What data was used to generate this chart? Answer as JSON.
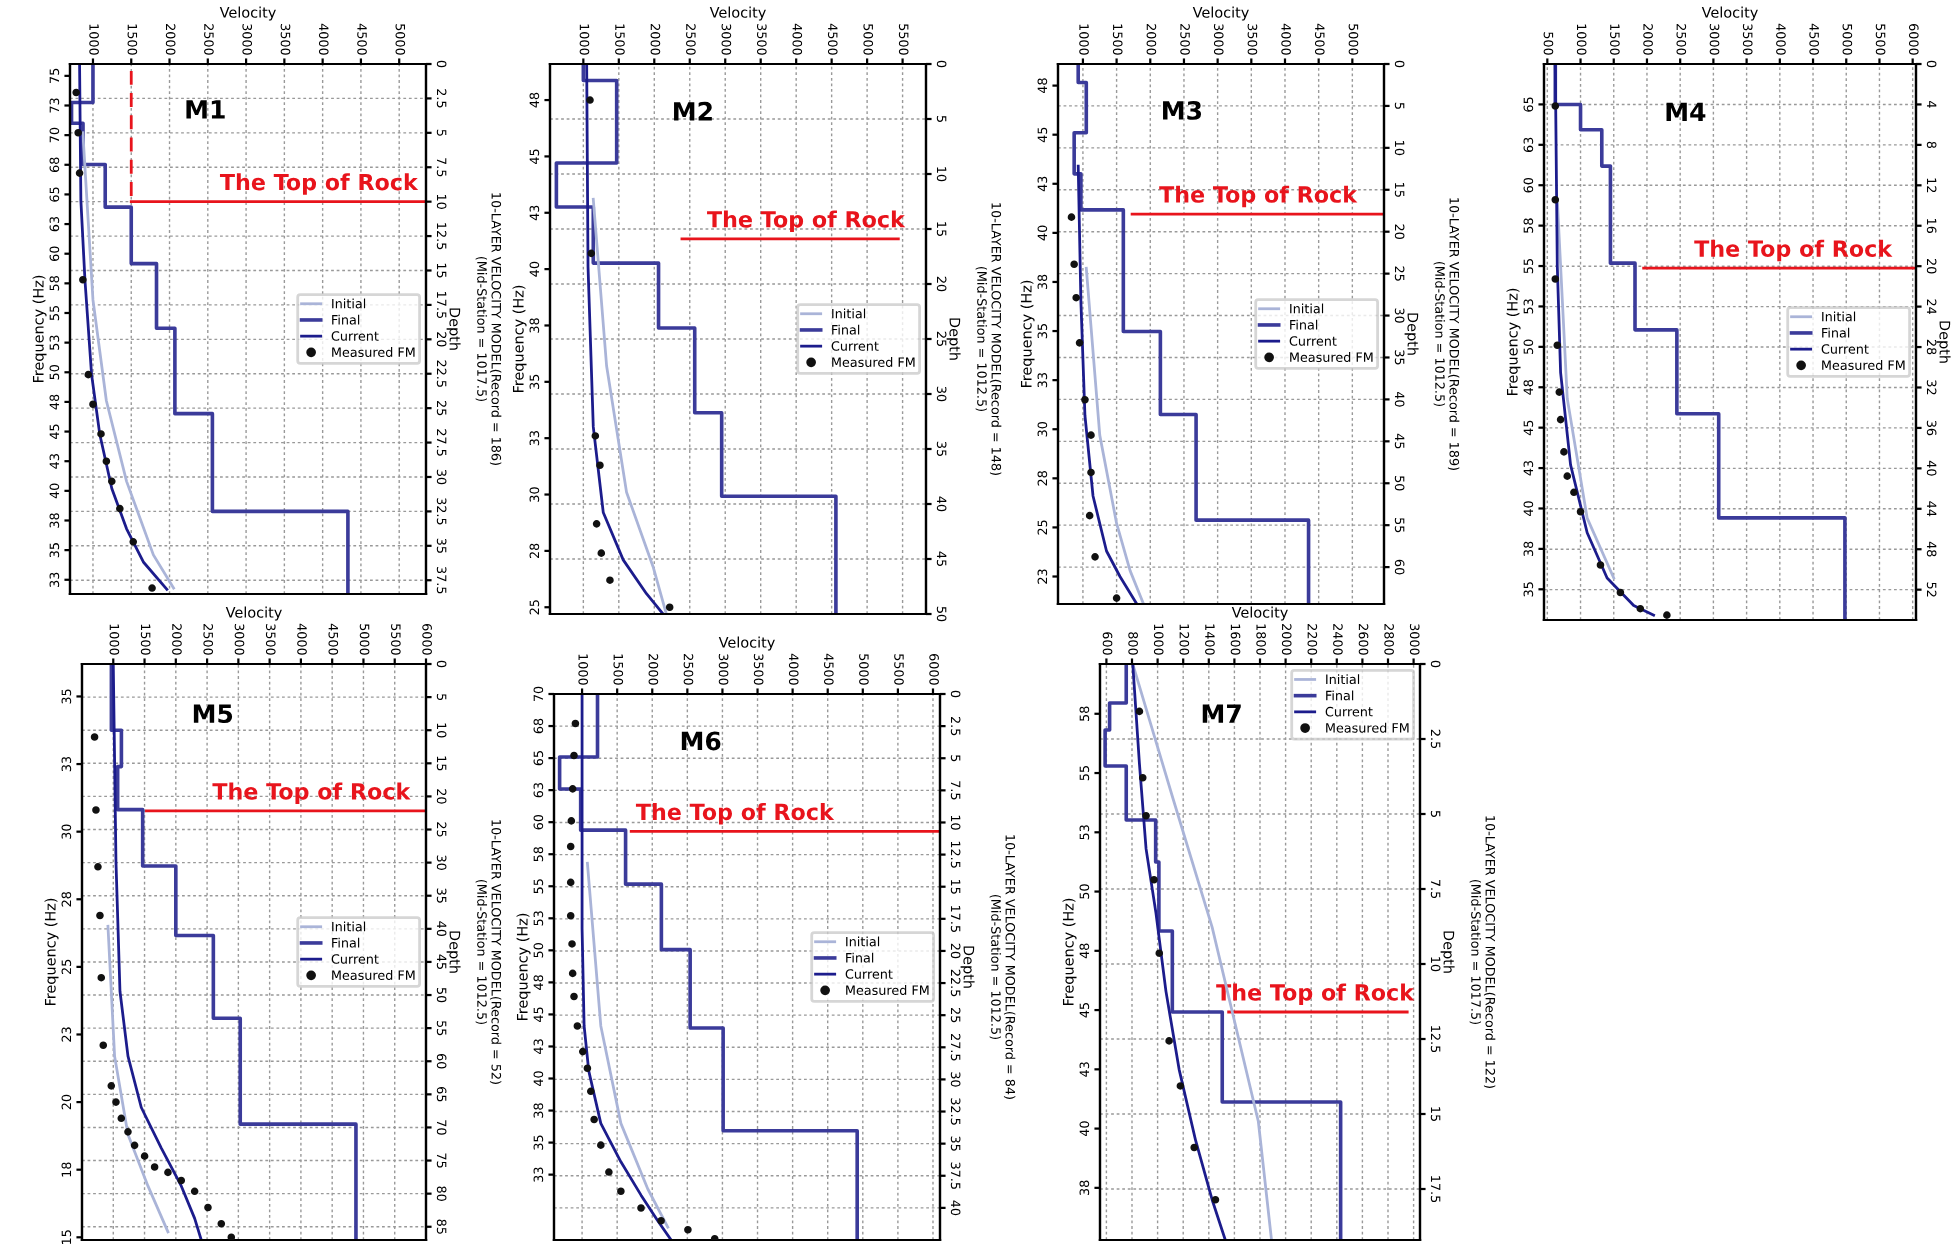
{
  "chart_data": [
    {
      "type": "line",
      "title": "M1",
      "xlabel": "Velocity",
      "ylabel": "Depth",
      "y2label": "Frequency (Hz)",
      "grid": true,
      "legend": "right",
      "xlim": [
        700,
        5350
      ],
      "xticks": [
        1000,
        1500,
        2000,
        2500,
        3000,
        3500,
        4000,
        4500,
        5000
      ],
      "ylim": [
        38.5,
        0
      ],
      "yticks": [
        0,
        2.5,
        5,
        7.5,
        10,
        12.5,
        15,
        17.5,
        20,
        22.5,
        25,
        27.5,
        30,
        32.5,
        35,
        37.5
      ],
      "y2lim": [
        31.3,
        76
      ],
      "y2ticks": [
        75,
        {
          "value": 72.5,
          "label": "73"
        },
        70,
        {
          "value": 67.5,
          "label": "68"
        },
        65,
        {
          "value": 62.5,
          "label": "63"
        },
        60,
        {
          "value": 57.5,
          "label": "58"
        },
        55,
        {
          "value": 52.5,
          "label": "53"
        },
        50,
        {
          "value": 47.5,
          "label": "48"
        },
        45,
        {
          "value": 42.5,
          "label": "43"
        },
        40,
        {
          "value": 37.5,
          "label": "38"
        },
        35,
        {
          "value": 32.5,
          "label": "33"
        }
      ],
      "series": [
        {
          "name": "Initial",
          "type": "line",
          "axis": "y2",
          "color": "#aab4d8",
          "x": [
            868,
            1000,
            1175,
            1439,
            1789,
            2053
          ],
          "values": [
            70.2,
            56.1,
            47.6,
            40.8,
            34.6,
            31.8
          ]
        },
        {
          "name": "Final",
          "color": "#3b3b9a",
          "x": [
            1000,
            1000,
            720,
            720,
            870,
            870,
            1160,
            1160,
            1500,
            1500,
            1830,
            1830,
            2070,
            2070,
            2560,
            2560,
            4330,
            4330
          ],
          "values": [
            0,
            2.8,
            2.8,
            4.3,
            4.3,
            7.3,
            7.3,
            10.4,
            10.4,
            14.5,
            14.5,
            19.2,
            19.2,
            25.4,
            25.4,
            32.5,
            32.5,
            38.5
          ]
        },
        {
          "name": "Current",
          "type": "line",
          "axis": "y2",
          "color": "#1c1c8c",
          "x": [
            825,
            842,
            895,
            982,
            1088,
            1246,
            1439,
            1658,
            1965
          ],
          "values": [
            76,
            64.5,
            57.8,
            49.8,
            44.8,
            40.2,
            36.8,
            34,
            31.7
          ]
        },
        {
          "name": "Measured FM",
          "type": "scatter",
          "axis": "y2",
          "marker": "circle",
          "color": "#111111",
          "x": [
            781,
            807,
            825,
            868,
            939,
            1000,
            1105,
            1175,
            1246,
            1351,
            1526,
            1772
          ],
          "values": [
            73.6,
            70.2,
            66.8,
            57.8,
            49.8,
            47.3,
            44.8,
            42.5,
            40.8,
            38.5,
            35.7,
            31.8
          ]
        },
        {
          "color": "#e8141c",
          "line_style": "dashed",
          "x": [
            1500,
            1500
          ],
          "values": [
            0.5,
            10
          ]
        },
        {
          "color": "#e8141c",
          "x": [
            1500,
            5350
          ],
          "values": [
            10,
            10
          ]
        }
      ],
      "annotations": [
        {
          "text": "The Top of Rock",
          "x": 3950,
          "y": 10
        },
        "10-LAYER VELOCITY MODEL(Record = 186)\n(Mid-Station = 1017.5)"
      ]
    },
    {
      "type": "line",
      "title": "M2",
      "xlabel": "Velocity",
      "ylabel": "Depth",
      "y2label": "Frequency (Hz)",
      "grid": true,
      "legend": "right",
      "xlim": [
        530,
        5830
      ],
      "xticks": [
        1000,
        1500,
        2000,
        2500,
        3000,
        3500,
        4000,
        4500,
        5000,
        5500
      ],
      "ylim": [
        50,
        0
      ],
      "yticks": [
        0,
        5,
        10,
        15,
        20,
        25,
        30,
        35,
        40,
        45,
        50
      ],
      "y2lim": [
        24.7,
        49.1
      ],
      "y2ticks": [
        {
          "value": 47.5,
          "label": "48"
        },
        45,
        {
          "value": 42.5,
          "label": "43"
        },
        40,
        {
          "value": 37.5,
          "label": "38"
        },
        35,
        {
          "value": 32.5,
          "label": "33"
        },
        30,
        {
          "value": 27.5,
          "label": "28"
        },
        25
      ],
      "series": [
        {
          "name": "Initial",
          "type": "line",
          "axis": "y2",
          "color": "#aab4d8",
          "x": [
            1140,
            1328,
            1609,
            1983,
            2170
          ],
          "values": [
            43.1,
            35.7,
            30.1,
            26.8,
            24.7
          ]
        },
        {
          "name": "Final",
          "color": "#3b3b9a",
          "x": [
            1000,
            1000,
            1470,
            1470,
            620,
            620,
            1140,
            1140,
            2060,
            2060,
            2570,
            2570,
            2950,
            2950,
            4560,
            4560
          ],
          "values": [
            0,
            1.5,
            1.5,
            9,
            9,
            13,
            13,
            18.1,
            18.1,
            24,
            24,
            31.7,
            31.7,
            39.3,
            39.3,
            50
          ]
        },
        {
          "name": "Current",
          "type": "line",
          "axis": "y2",
          "color": "#1c1c8c",
          "x": [
            1047,
            1066,
            1140,
            1281,
            1562,
            1890,
            2124
          ],
          "values": [
            49.1,
            40.1,
            33,
            29.2,
            27.1,
            25.6,
            24.7
          ]
        },
        {
          "name": "Measured FM",
          "type": "scatter",
          "axis": "y2",
          "marker": "circle",
          "color": "#111111",
          "x": [
            1094,
            1112,
            1169,
            1234,
            1187,
            1253,
            1375,
            2217
          ],
          "values": [
            47.5,
            40.7,
            32.6,
            31.3,
            28.7,
            27.4,
            26.2,
            25
          ]
        },
        {
          "color": "#e8141c",
          "x": [
            2390,
            5440
          ],
          "values": [
            15.9,
            15.9
          ]
        }
      ],
      "annotations": [
        {
          "text": "The Top of Rock",
          "x": 4137,
          "y": 15.9
        },
        "10-LAYER VELOCITY MODEL(Record = 148)\n(Mid-Station = 1012.5)"
      ]
    },
    {
      "type": "line",
      "title": "M3",
      "xlabel": "Velocity",
      "ylabel": "Depth",
      "y2label": "Frequency (Hz)",
      "grid": true,
      "legend": "right",
      "xlim": [
        630,
        5470
      ],
      "xticks": [
        1000,
        1500,
        2000,
        2500,
        3000,
        3500,
        4000,
        4500,
        5000
      ],
      "ylim": [
        64.4,
        0
      ],
      "yticks": [
        0,
        5,
        10,
        15,
        20,
        25,
        30,
        35,
        40,
        45,
        50,
        55,
        60
      ],
      "y2lim": [
        21.1,
        48.6
      ],
      "y2ticks": [
        {
          "value": 47.5,
          "label": "48"
        },
        45,
        {
          "value": 42.5,
          "label": "43"
        },
        40,
        {
          "value": 37.5,
          "label": "38"
        },
        35,
        {
          "value": 32.5,
          "label": "33"
        },
        30,
        {
          "value": 27.5,
          "label": "28"
        },
        25,
        {
          "value": 22.5,
          "label": "23"
        }
      ],
      "series": [
        {
          "name": "Initial",
          "type": "line",
          "axis": "y2",
          "color": "#aab4d8",
          "x": [
            1050,
            1250,
            1500,
            1700,
            1900
          ],
          "values": [
            38.2,
            29.7,
            25.2,
            22.8,
            21.1
          ]
        },
        {
          "name": "Final",
          "color": "#3b3b9a",
          "x": [
            930,
            930,
            1050,
            1050,
            870,
            870,
            970,
            970,
            1600,
            1600,
            2150,
            2150,
            2680,
            2680,
            4350,
            4350
          ],
          "values": [
            0,
            2.2,
            2.2,
            8.2,
            8.2,
            13.1,
            13.1,
            17.4,
            17.4,
            31.9,
            31.9,
            41.8,
            41.8,
            54.4,
            54.4,
            64.4
          ]
        },
        {
          "name": "Current",
          "type": "line",
          "axis": "y2",
          "color": "#1c1c8c",
          "x": [
            930,
            970,
            1030,
            1150,
            1350,
            1550,
            1800
          ],
          "values": [
            43.4,
            36.5,
            30.7,
            26.6,
            23.8,
            22.5,
            21.1
          ]
        },
        {
          "name": "Measured FM",
          "type": "scatter",
          "axis": "y2",
          "marker": "circle",
          "color": "#111111",
          "x": [
            830,
            870,
            900,
            950,
            1030,
            1120,
            1120,
            1100,
            1180,
            1500
          ],
          "values": [
            40.8,
            38.4,
            36.7,
            34.4,
            31.5,
            29.7,
            27.8,
            25.6,
            23.5,
            21.4
          ]
        },
        {
          "color": "#e8141c",
          "x": [
            1730,
            5470
          ],
          "values": [
            17.9,
            17.9
          ]
        }
      ],
      "annotations": [
        {
          "text": "The Top of Rock",
          "x": 3600,
          "y": 17.9
        },
        "10-LAYER VELOCITY MODEL(Record = 189)\n(Mid-Station = 1012.5)"
      ]
    },
    {
      "type": "line",
      "title": "M4",
      "xlabel": "Velocity",
      "ylabel": "Depth",
      "y2label": "Frequency (Hz)",
      "grid": true,
      "legend": "right",
      "xlim": [
        450,
        6050
      ],
      "xticks": [
        500,
        1000,
        1500,
        2000,
        2500,
        3000,
        3500,
        4000,
        4500,
        5000,
        5500,
        6000
      ],
      "ylim": [
        55,
        0
      ],
      "yticks": [
        0,
        4,
        8,
        12,
        16,
        20,
        24,
        28,
        32,
        36,
        40,
        44,
        48,
        52
      ],
      "y2lim": [
        33.1,
        67.5
      ],
      "y2ticks": [
        65,
        {
          "value": 62.5,
          "label": "63"
        },
        60,
        {
          "value": 57.5,
          "label": "58"
        },
        55,
        {
          "value": 52.5,
          "label": "53"
        },
        50,
        {
          "value": 47.5,
          "label": "48"
        },
        45,
        {
          "value": 42.5,
          "label": "43"
        },
        40,
        {
          "value": 37.5,
          "label": "38"
        },
        35
      ],
      "series": [
        {
          "name": "Initial",
          "type": "line",
          "axis": "y2",
          "color": "#aab4d8",
          "x": [
            650,
            800,
            1100,
            1500
          ],
          "values": [
            59.1,
            46.8,
            39.4,
            35.7
          ]
        },
        {
          "name": "Final",
          "color": "#3b3b9a",
          "x": [
            620,
            620,
            1000,
            1000,
            1320,
            1320,
            1450,
            1450,
            1820,
            1820,
            2450,
            2450,
            3080,
            3080,
            4980,
            4980
          ],
          "values": [
            0,
            4,
            4,
            6.5,
            6.5,
            10.1,
            10.1,
            19.7,
            19.7,
            26.3,
            26.3,
            34.6,
            34.6,
            44.9,
            44.9,
            55
          ]
        },
        {
          "name": "Current",
          "type": "line",
          "axis": "y2",
          "color": "#1c1c8c",
          "x": [
            620,
            650,
            700,
            850,
            1100,
            1400,
            1800,
            2100
          ],
          "values": [
            67.4,
            55,
            48.4,
            42.7,
            38.5,
            35.7,
            34,
            33.4
          ]
        },
        {
          "name": "Measured FM",
          "type": "scatter",
          "axis": "y2",
          "marker": "circle",
          "color": "#111111",
          "x": [
            620,
            620,
            620,
            650,
            680,
            700,
            750,
            800,
            900,
            1000,
            1300,
            1600,
            1900,
            2300
          ],
          "values": [
            64.9,
            59.1,
            54.2,
            50.1,
            47.2,
            45.5,
            43.5,
            42,
            41,
            39.8,
            36.5,
            34.8,
            33.8,
            33.4
          ]
        },
        {
          "color": "#e8141c",
          "x": [
            1950,
            6020
          ],
          "values": [
            20.2,
            20.2
          ]
        }
      ],
      "annotations": [
        {
          "text": "The Top of Rock",
          "x": 4200,
          "y": 20.2
        }
      ]
    },
    {
      "type": "line",
      "title": "M5",
      "xlabel": "Velocity",
      "ylabel": "Depth",
      "y2label": "Frequency (Hz)",
      "grid": true,
      "legend": "right",
      "xlim": [
        500,
        6000
      ],
      "xticks": [
        1000,
        1500,
        2000,
        2500,
        3000,
        3500,
        4000,
        4500,
        5000,
        5500,
        6000
      ],
      "ylim": [
        87,
        0
      ],
      "yticks": [
        0,
        5,
        10,
        15,
        20,
        25,
        30,
        35,
        40,
        45,
        50,
        55,
        60,
        65,
        70,
        75,
        80,
        85
      ],
      "y2lim": [
        14.9,
        36.2
      ],
      "y2ticks": [
        35,
        {
          "value": 32.5,
          "label": "33"
        },
        30,
        {
          "value": 27.5,
          "label": "28"
        },
        25,
        {
          "value": 22.5,
          "label": "23"
        },
        20,
        {
          "value": 17.5,
          "label": "18"
        },
        15
      ],
      "series": [
        {
          "name": "Initial",
          "type": "line",
          "axis": "y2",
          "color": "#aab4d8",
          "x": [
            915,
            1021,
            1235,
            1554,
            1874
          ],
          "values": [
            26.5,
            21.7,
            18.8,
            16.9,
            15.2
          ]
        },
        {
          "name": "Final",
          "color": "#3b3b9a",
          "x": [
            970,
            970,
            1130,
            1130,
            1070,
            1070,
            1470,
            1470,
            2000,
            2000,
            2600,
            2600,
            3030,
            3030,
            4880,
            4880
          ],
          "values": [
            0,
            10,
            10,
            15.5,
            15.5,
            22,
            22,
            30.5,
            30.5,
            41,
            41,
            53.5,
            53.5,
            69.5,
            69.5,
            87
          ]
        },
        {
          "name": "Current",
          "type": "line",
          "axis": "y2",
          "color": "#1c1c8c",
          "x": [
            1000,
            1043,
            1107,
            1235,
            1448,
            1768,
            2087,
            2301,
            2407
          ],
          "values": [
            36.2,
            28.9,
            24.1,
            21.7,
            19.8,
            18.3,
            16.9,
            15.7,
            14.9
          ]
        },
        {
          "name": "Measured FM",
          "type": "scatter",
          "axis": "y2",
          "marker": "circle",
          "color": "#111111",
          "x": [
            701,
            723,
            755,
            787,
            808,
            840,
            968,
            1043,
            1128,
            1235,
            1341,
            1501,
            1661,
            1874,
            2087,
            2301,
            2514,
            2727,
            2887
          ],
          "values": [
            33.5,
            30.8,
            28.7,
            26.9,
            24.6,
            22.1,
            20.6,
            20,
            19.4,
            18.9,
            18.4,
            18,
            17.6,
            17.4,
            17.1,
            16.7,
            16.1,
            15.5,
            15
          ]
        },
        {
          "color": "#e8141c",
          "x": [
            1530,
            6000
          ],
          "values": [
            22.2,
            22.2
          ]
        }
      ],
      "annotations": [
        {
          "text": "The Top of Rock",
          "x": 4166,
          "y": 22.2
        },
        "10-LAYER VELOCITY MODEL(Record = 52)\n(Mid-Station = 1012.5)"
      ]
    },
    {
      "type": "line",
      "title": "M6",
      "xlabel": "Velocity",
      "ylabel": "Depth",
      "y2label": "Frequency (Hz)",
      "grid": true,
      "legend": "right",
      "xlim": [
        600,
        6100
      ],
      "xticks": [
        1000,
        1500,
        2000,
        2500,
        3000,
        3500,
        4000,
        4500,
        5000,
        5500,
        6000
      ],
      "ylim": [
        42.5,
        0
      ],
      "yticks": [
        0,
        2.5,
        5,
        7.5,
        10,
        12.5,
        15,
        17.5,
        20,
        22.5,
        25,
        27.5,
        30,
        32.5,
        35,
        37.5,
        40
      ],
      "y2lim": [
        27.4,
        70
      ],
      "y2ticks": [
        70,
        {
          "value": 67.5,
          "label": "68"
        },
        65,
        {
          "value": 62.5,
          "label": "63"
        },
        60,
        {
          "value": 57.5,
          "label": "58"
        },
        55,
        {
          "value": 52.5,
          "label": "53"
        },
        50,
        {
          "value": 47.5,
          "label": "48"
        },
        45,
        {
          "value": 42.5,
          "label": "43"
        },
        40,
        {
          "value": 37.5,
          "label": "38"
        },
        35,
        {
          "value": 32.5,
          "label": "33"
        }
      ],
      "series": [
        {
          "name": "Initial",
          "type": "line",
          "axis": "y2",
          "color": "#aab4d8",
          "x": [
            1076,
            1267,
            1553,
            1935,
            2221
          ],
          "values": [
            56.8,
            44.1,
            36.5,
            31.4,
            28.4
          ]
        },
        {
          "name": "Final",
          "color": "#3b3b9a",
          "x": [
            1220,
            1220,
            680,
            680,
            980,
            980,
            1620,
            1620,
            2130,
            2130,
            2540,
            2540,
            3010,
            3010,
            4920,
            4920
          ],
          "values": [
            0,
            4.9,
            4.9,
            7.4,
            7.4,
            10.6,
            10.6,
            14.8,
            14.8,
            19.9,
            19.9,
            26,
            26,
            34,
            34,
            42.5
          ]
        },
        {
          "name": "Current",
          "type": "line",
          "axis": "y2",
          "color": "#1c1c8c",
          "x": [
            1000,
            1000,
            1029,
            1095,
            1267,
            1553,
            1840,
            2078,
            2269
          ],
          "values": [
            70,
            51.7,
            44.1,
            40.6,
            36.5,
            33.5,
            30.9,
            28.9,
            27.4
          ]
        },
        {
          "name": "Measured FM",
          "type": "scatter",
          "axis": "y2",
          "marker": "circle",
          "color": "#111111",
          "x": [
            905,
            885,
            866,
            847,
            838,
            838,
            838,
            857,
            866,
            885,
            933,
            1010,
            1076,
            1124,
            1172,
            1267,
            1382,
            1553,
            1840,
            2126,
            2508,
            2890
          ],
          "values": [
            67.7,
            65.2,
            62.6,
            60.1,
            58.1,
            55.3,
            52.7,
            50.5,
            48.2,
            46.4,
            44.1,
            42.1,
            40.8,
            39,
            36.8,
            34.8,
            32.7,
            31.2,
            29.9,
            28.9,
            28.2,
            27.5
          ]
        },
        {
          "color": "#e8141c",
          "x": [
            1700,
            6090
          ],
          "values": [
            10.7,
            10.7
          ]
        }
      ],
      "annotations": [
        {
          "text": "The Top of Rock",
          "x": 3176,
          "y": 10.7
        },
        "10-LAYER VELOCITY MODEL(Record = 84)\n(Mid-Station = 1012.5)"
      ]
    },
    {
      "type": "line",
      "title": "M7",
      "xlabel": "Velocity",
      "ylabel": "Depth",
      "y2label": "Frequency (Hz)",
      "grid": true,
      "legend": "top right",
      "xlim": [
        550,
        3050
      ],
      "xticks": [
        600,
        800,
        1000,
        1200,
        1400,
        1600,
        1800,
        2000,
        2200,
        2400,
        2600,
        2800,
        3000
      ],
      "ylim": [
        19.2,
        0
      ],
      "yticks": [
        0,
        2.5,
        5,
        7.5,
        10,
        12.5,
        15,
        17.5
      ],
      "y2lim": [
        35.3,
        59.6
      ],
      "y2ticks": [
        {
          "value": 57.5,
          "label": "58"
        },
        55,
        {
          "value": 52.5,
          "label": "53"
        },
        50,
        {
          "value": 47.5,
          "label": "48"
        },
        45,
        {
          "value": 42.5,
          "label": "43"
        },
        40,
        {
          "value": 37.5,
          "label": "38"
        }
      ],
      "series": [
        {
          "name": "Initial",
          "type": "line",
          "axis": "y2",
          "color": "#aab4d8",
          "x": [
            806,
            1116,
            1426,
            1787,
            1890
          ],
          "values": [
            59.6,
            54,
            48.5,
            40.3,
            35.3
          ]
        },
        {
          "name": "Final",
          "color": "#3b3b9a",
          "x": [
            755,
            755,
            625,
            625,
            590,
            590,
            755,
            755,
            985,
            985,
            1010,
            1010,
            1115,
            1115,
            1505,
            1505,
            2430,
            2430
          ],
          "values": [
            0,
            1.3,
            1.3,
            2.2,
            2.2,
            3.4,
            3.4,
            5.2,
            5.2,
            6.6,
            6.6,
            8.9,
            8.9,
            11.6,
            11.6,
            14.6,
            14.6,
            19.2
          ]
        },
        {
          "name": "Current",
          "type": "line",
          "axis": "y2",
          "color": "#1c1c8c",
          "x": [
            806,
            858,
            910,
            987,
            1065,
            1168,
            1297,
            1426,
            1529
          ],
          "values": [
            59.6,
            55.4,
            51.8,
            49.1,
            45.8,
            42.5,
            39.5,
            37,
            35.3
          ]
        },
        {
          "name": "Measured FM",
          "type": "scatter",
          "axis": "y2",
          "marker": "circle",
          "color": "#111111",
          "x": [
            858,
            884,
            910,
            972,
            1013,
            1090,
            1178,
            1286,
            1452
          ],
          "values": [
            57.6,
            54.8,
            53.2,
            50.5,
            47.4,
            43.7,
            41.8,
            39.2,
            37
          ]
        },
        {
          "color": "#e8141c",
          "x": [
            1555,
            2950
          ],
          "values": [
            11.6,
            11.6
          ]
        }
      ],
      "annotations": [
        {
          "text": "The Top of Rock",
          "x": 2230,
          "y": 11.6
        },
        "10-LAYER VELOCITY MODEL(Record = 122)\n(Mid-Station = 1017.5)"
      ]
    }
  ]
}
